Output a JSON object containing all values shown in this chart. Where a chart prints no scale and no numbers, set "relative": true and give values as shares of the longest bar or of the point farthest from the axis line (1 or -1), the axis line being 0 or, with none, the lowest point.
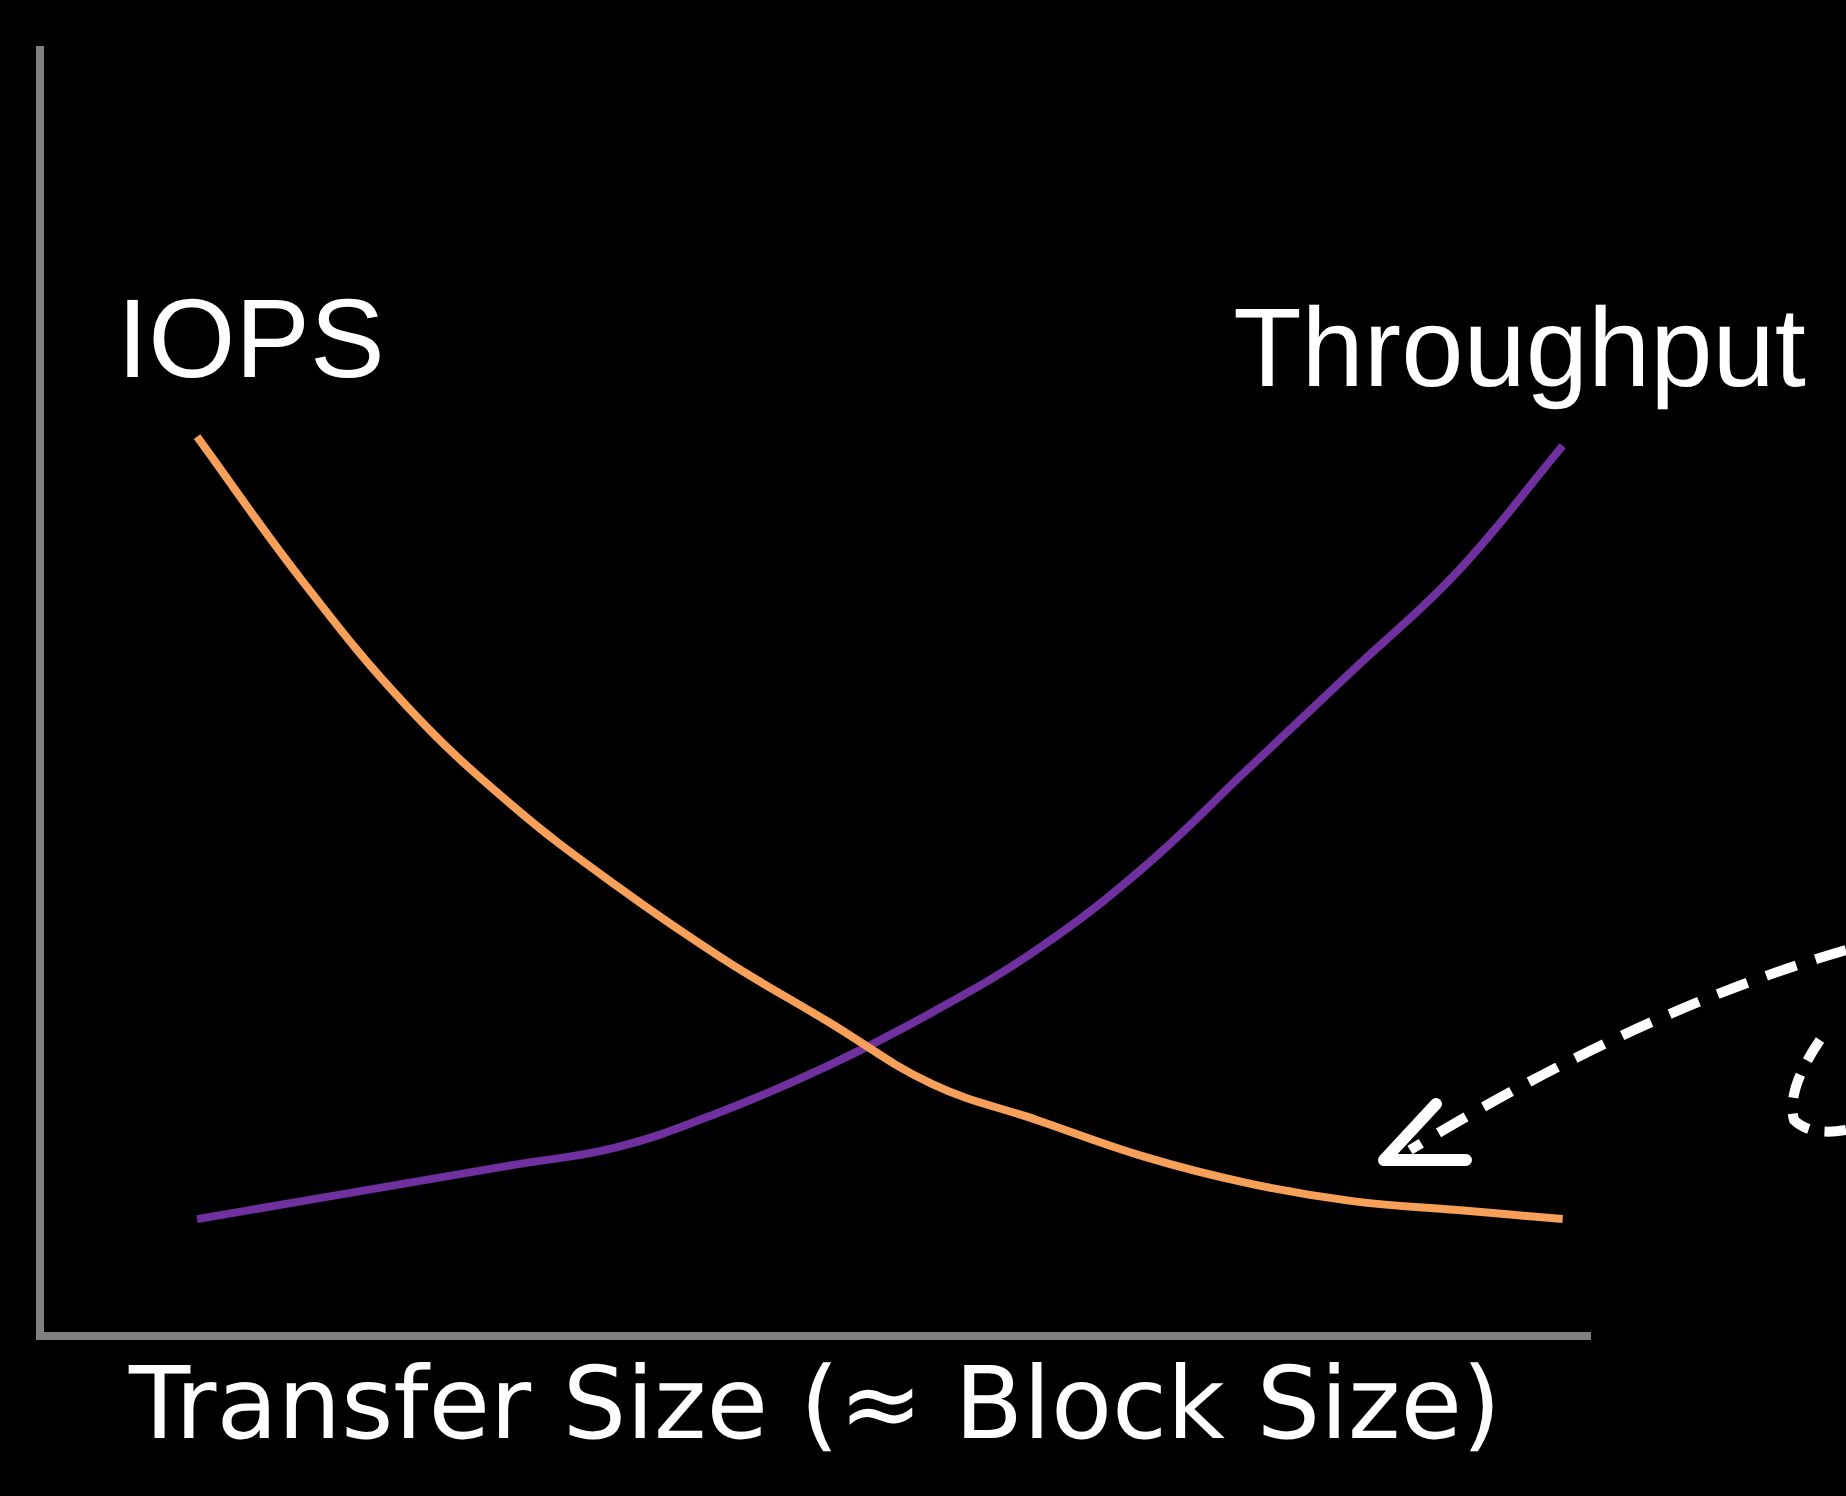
{
  "chart_data": {
    "type": "line",
    "relative": true,
    "xlabel": "Transfer Size (≈ Block Size)",
    "categories": [
      null,
      null,
      null,
      null,
      null,
      null,
      null,
      null,
      null,
      null,
      null,
      null,
      null,
      null
    ],
    "series": [
      {
        "name": "IOPS",
        "color": "#f6a05a",
        "values": [
          1.0,
          0.84,
          0.7,
          0.59,
          0.5,
          0.42,
          0.35,
          0.28,
          0.24,
          0.2,
          0.17,
          0.15,
          0.14,
          0.13
        ]
      },
      {
        "name": "Throughput",
        "color": "#7030a0",
        "values": [
          0.13,
          0.15,
          0.17,
          0.19,
          0.21,
          0.25,
          0.3,
          0.36,
          0.43,
          0.52,
          0.63,
          0.74,
          0.85,
          0.99
        ]
      }
    ],
    "grid": false,
    "legend": false,
    "marker": "none",
    "line_style": "solid"
  }
}
